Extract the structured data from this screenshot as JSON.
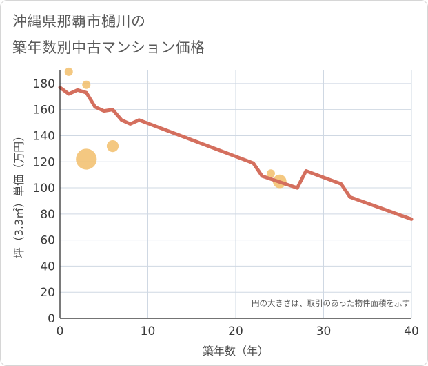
{
  "chart_data": {
    "type": "line+bubble",
    "title_lines": [
      "沖縄県那覇市樋川の",
      "築年数別中古マンション価格"
    ],
    "xlabel": "築年数（年）",
    "ylabel": "坪（3.3㎡）単価（万円）",
    "xlim": [
      0,
      40
    ],
    "ylim": [
      0,
      190
    ],
    "x_ticks": [
      0,
      10,
      20,
      30,
      40
    ],
    "y_ticks": [
      0,
      20,
      40,
      60,
      80,
      100,
      120,
      140,
      160,
      180
    ],
    "grid": true,
    "note": "円の大きさは、取引のあった物件面積を示す",
    "colors": {
      "line": "#d46f5e",
      "bubble": "#f0b557",
      "grid": "#cfd8e3"
    },
    "line": {
      "x": [
        0,
        1,
        2,
        3,
        4,
        5,
        6,
        7,
        8,
        9,
        22,
        23,
        27,
        28,
        32,
        33,
        40
      ],
      "y": [
        177,
        172,
        175,
        173,
        162,
        159,
        160,
        152,
        149,
        152,
        119,
        109,
        100,
        113,
        103,
        93,
        76
      ]
    },
    "bubbles": [
      {
        "x": 1,
        "y": 189,
        "size": 3
      },
      {
        "x": 3,
        "y": 179,
        "size": 3
      },
      {
        "x": 3,
        "y": 122,
        "size": 10
      },
      {
        "x": 6,
        "y": 132,
        "size": 5
      },
      {
        "x": 24,
        "y": 111,
        "size": 3
      },
      {
        "x": 25,
        "y": 105,
        "size": 6
      }
    ]
  }
}
